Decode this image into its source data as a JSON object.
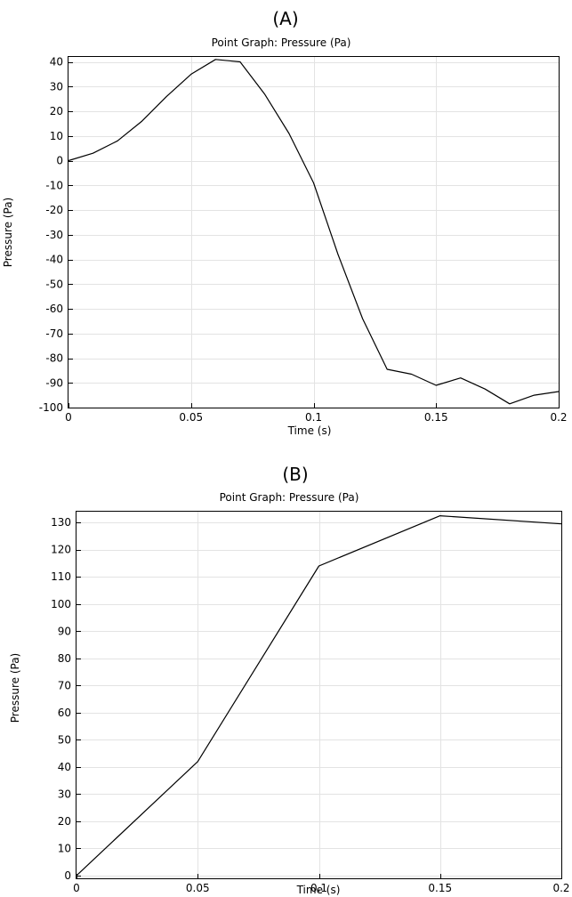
{
  "chart_data": [
    {
      "type": "line",
      "panel_label": "(A)",
      "title": "Point Graph: Pressure (Pa)",
      "xlabel": "Time (s)",
      "ylabel": "Pressure (Pa)",
      "xlim": [
        0,
        0.2
      ],
      "ylim": [
        -100,
        42
      ],
      "xticks": [
        0,
        0.05,
        0.1,
        0.15,
        0.2
      ],
      "xtick_labels": [
        "0",
        "0.05",
        "0.1",
        "0.15",
        "0.2"
      ],
      "yticks": [
        40,
        30,
        20,
        10,
        0,
        -10,
        -20,
        -30,
        -40,
        -50,
        -60,
        -70,
        -80,
        -90,
        -100
      ],
      "ytick_labels": [
        "40",
        "30",
        "20",
        "10",
        "0",
        "-10",
        "-20",
        "-30",
        "-40",
        "-50",
        "-60",
        "-70",
        "-80",
        "-90",
        "-100"
      ],
      "grid": true,
      "series": [
        {
          "name": "Pressure (Pa)",
          "x": [
            0,
            0.01,
            0.02,
            0.03,
            0.04,
            0.05,
            0.06,
            0.07,
            0.08,
            0.09,
            0.1,
            0.11,
            0.12,
            0.13,
            0.14,
            0.15,
            0.16,
            0.17,
            0.18,
            0.19,
            0.2
          ],
          "y": [
            0,
            3,
            8,
            16,
            26,
            35,
            41,
            40,
            27,
            11,
            -9,
            -38,
            -64,
            -84.5,
            -86.5,
            -91,
            -88,
            -92.5,
            -98.5,
            -95,
            -93.5
          ]
        }
      ]
    },
    {
      "type": "line",
      "panel_label": "(B)",
      "title": "Point Graph: Pressure (Pa)",
      "xlabel": "Time (s)",
      "ylabel": "Pressure (Pa)",
      "xlim": [
        0,
        0.2
      ],
      "ylim": [
        -1,
        134
      ],
      "xticks": [
        0,
        0.05,
        0.1,
        0.15,
        0.2
      ],
      "xtick_labels": [
        "0",
        "0.05",
        "0.1",
        "0.15",
        "0.2"
      ],
      "yticks": [
        130,
        120,
        110,
        100,
        90,
        80,
        70,
        60,
        50,
        40,
        30,
        20,
        10,
        0
      ],
      "ytick_labels": [
        "130",
        "120",
        "110",
        "100",
        "90",
        "80",
        "70",
        "60",
        "50",
        "40",
        "30",
        "20",
        "10",
        "0"
      ],
      "grid": true,
      "series": [
        {
          "name": "Pressure (Pa)",
          "x": [
            0,
            0.05,
            0.1,
            0.15,
            0.2
          ],
          "y": [
            0,
            42,
            114,
            132.5,
            129.5
          ]
        }
      ]
    }
  ]
}
